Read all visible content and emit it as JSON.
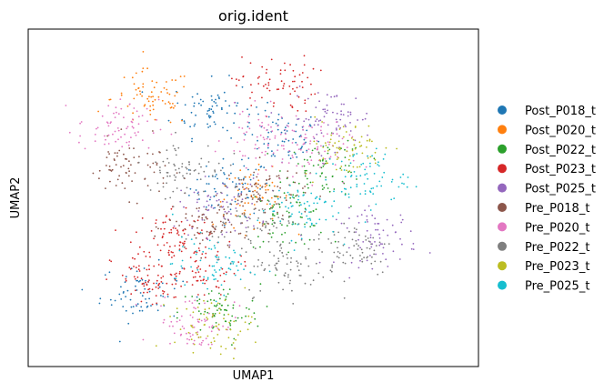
{
  "chart_data": {
    "type": "scatter",
    "title": "orig.ident",
    "xlabel": "UMAP1",
    "ylabel": "UMAP2",
    "grid": false,
    "legend_placement": "right",
    "xlim": [
      -10,
      10
    ],
    "ylim": [
      -8.5,
      8.5
    ],
    "series": [
      {
        "name": "Post_P018_t",
        "color": "#1f77b4",
        "centers": [
          [
            -1.0,
            0.5
          ],
          [
            1.2,
            3.0
          ],
          [
            -1.8,
            4.5
          ],
          [
            -5.0,
            -4.8
          ]
        ]
      },
      {
        "name": "Post_P020_t",
        "color": "#ff7f0e",
        "centers": [
          [
            0.0,
            0.0
          ],
          [
            -4.5,
            5.0
          ]
        ]
      },
      {
        "name": "Post_P022_t",
        "color": "#2ca02c",
        "centers": [
          [
            3.2,
            1.5
          ],
          [
            1.5,
            -1.0
          ],
          [
            -1.5,
            -5.8
          ]
        ]
      },
      {
        "name": "Post_P023_t",
        "color": "#d62728",
        "centers": [
          [
            -3.5,
            -1.8
          ],
          [
            -2.5,
            -3.5
          ],
          [
            1.0,
            5.7
          ],
          [
            -4.5,
            -4.2
          ]
        ]
      },
      {
        "name": "Post_P025_t",
        "color": "#9467bd",
        "centers": [
          [
            -1.5,
            -0.5
          ],
          [
            3.5,
            4.0
          ],
          [
            5.5,
            -2.0
          ]
        ]
      },
      {
        "name": "Pre_P018_t",
        "color": "#8c564b",
        "centers": [
          [
            0.5,
            0.3
          ],
          [
            -5.5,
            1.5
          ],
          [
            -2.0,
            -1.5
          ]
        ]
      },
      {
        "name": "Pre_P020_t",
        "color": "#e377c2",
        "centers": [
          [
            0.5,
            3.0
          ],
          [
            -2.5,
            -6.3
          ],
          [
            2.5,
            2.3
          ],
          [
            -6.0,
            3.5
          ]
        ]
      },
      {
        "name": "Pre_P022_t",
        "color": "#7f7f7f",
        "centers": [
          [
            0.0,
            -1.0
          ],
          [
            4.5,
            -2.5
          ],
          [
            1.5,
            -3.5
          ],
          [
            -3.0,
            1.5
          ]
        ]
      },
      {
        "name": "Pre_P023_t",
        "color": "#bcbd22",
        "centers": [
          [
            4.0,
            2.5
          ],
          [
            -1.8,
            -6.5
          ]
        ]
      },
      {
        "name": "Pre_P025_t",
        "color": "#17becf",
        "centers": [
          [
            5.0,
            1.0
          ],
          [
            -1.8,
            -3.4
          ],
          [
            2.0,
            -0.5
          ]
        ]
      }
    ]
  }
}
